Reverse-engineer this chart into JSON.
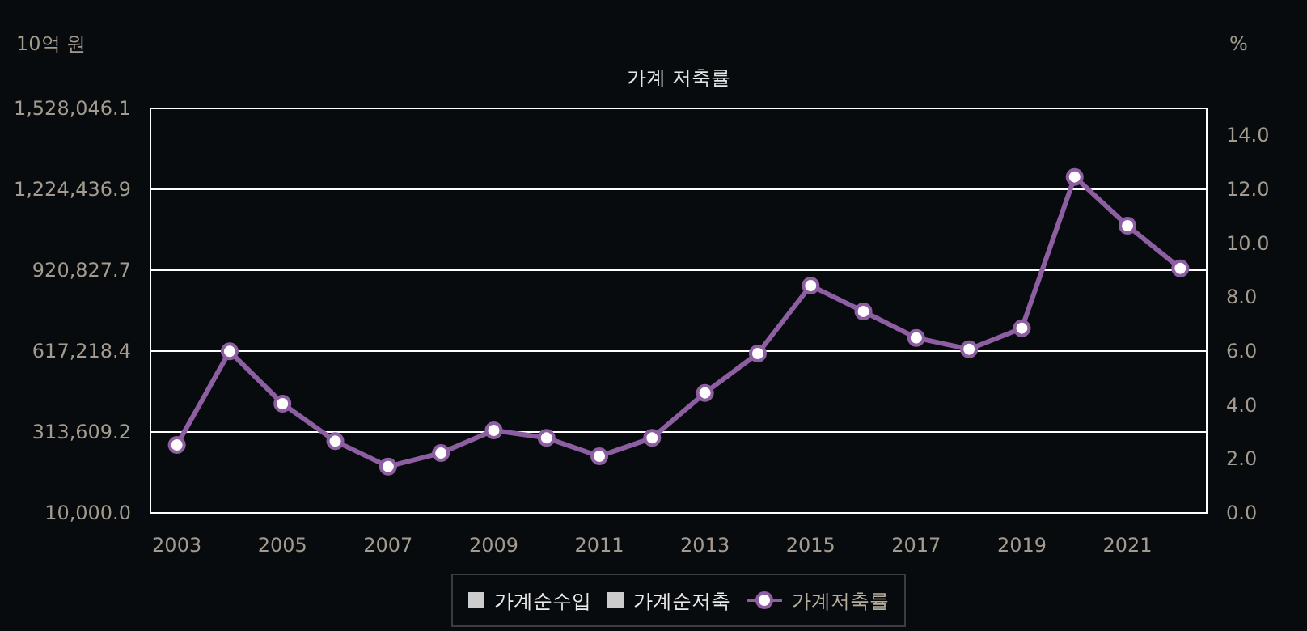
{
  "chart_data": {
    "type": "line",
    "title": "가계 저축률",
    "ylabel": "10억 원",
    "y2label": "%",
    "categories": [
      "2003",
      null,
      "2005",
      null,
      "2007",
      null,
      "2009",
      null,
      "2011",
      null,
      "2013",
      null,
      "2015",
      null,
      "2017",
      null,
      "2019",
      null,
      "2021",
      null
    ],
    "series": [
      {
        "name": "가계순수입",
        "type": "bar",
        "color": "#cccccc",
        "axis": "y",
        "values": [
          null,
          null,
          null,
          null,
          null,
          null,
          null,
          null,
          null,
          null,
          null,
          null,
          null,
          null,
          null,
          null,
          null,
          null,
          null,
          null
        ]
      },
      {
        "name": "가계순저축",
        "type": "bar",
        "color": "#cccccc",
        "axis": "y",
        "values": [
          null,
          null,
          null,
          null,
          null,
          null,
          null,
          null,
          null,
          null,
          null,
          null,
          null,
          null,
          null,
          null,
          null,
          null,
          null,
          null
        ]
      },
      {
        "name": "가계저축률",
        "color": "#8e5ea2",
        "axis": "y2",
        "values": [
          2.52,
          5.99,
          4.05,
          2.66,
          1.72,
          2.22,
          3.06,
          2.78,
          2.1,
          2.78,
          4.45,
          5.91,
          8.43,
          7.47,
          6.49,
          6.07,
          6.85,
          12.46,
          10.65,
          9.07
        ]
      }
    ],
    "ylim": [
      10000,
      1528046.1
    ],
    "yticks": [
      {
        "value": 10000,
        "label": "10,000.0"
      },
      {
        "value": 313609.2,
        "label": "313,609.2"
      },
      {
        "value": 617218.4,
        "label": "617,218.4"
      },
      {
        "value": 920827.7,
        "label": "920,827.7"
      },
      {
        "value": 1224436.9,
        "label": "1,224,436.9"
      },
      {
        "value": 1528046.1,
        "label": "1,528,046.1"
      }
    ],
    "y2lim": [
      0,
      15
    ],
    "y2ticks": [
      {
        "value": 0,
        "label": "0.0"
      },
      {
        "value": 2,
        "label": "2.0"
      },
      {
        "value": 4,
        "label": "4.0"
      },
      {
        "value": 6,
        "label": "6.0"
      },
      {
        "value": 8,
        "label": "8.0"
      },
      {
        "value": 10,
        "label": "10.0"
      },
      {
        "value": 12,
        "label": "12.0"
      },
      {
        "value": 14,
        "label": "14.0"
      }
    ],
    "grid": "y",
    "legend": "bottom",
    "marker": "circle"
  }
}
